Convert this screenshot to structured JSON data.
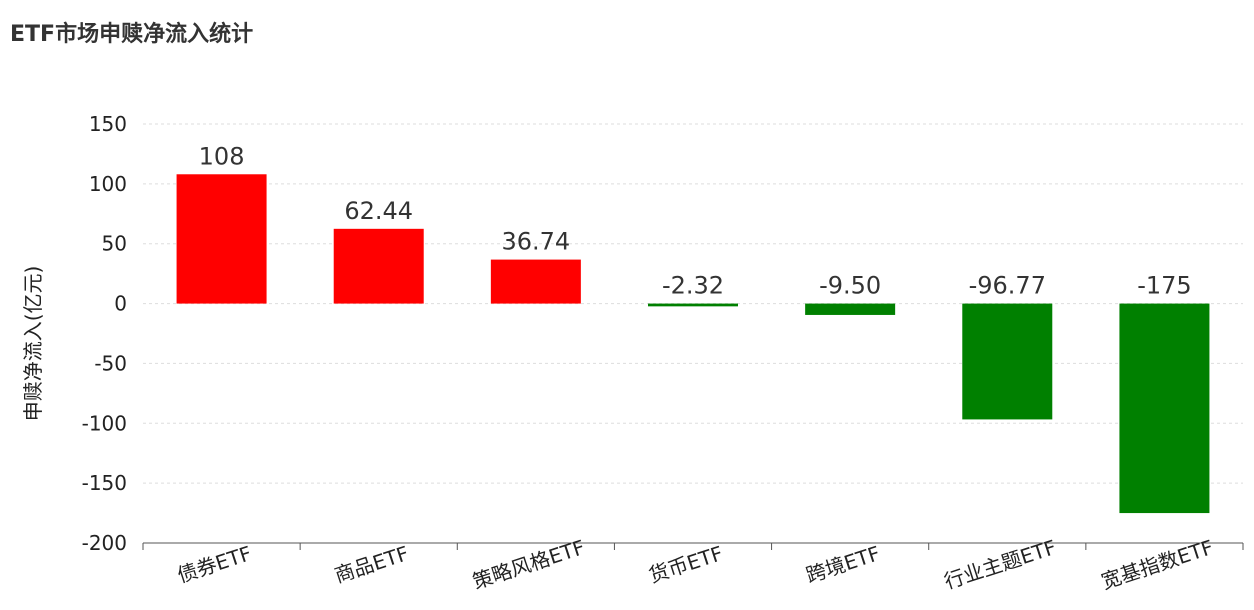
{
  "title": "ETF市场申赎净流入统计",
  "chart_data": {
    "type": "bar",
    "title": "ETF市场申赎净流入统计",
    "ylabel": "申赎净流入(亿元)",
    "xlabel": "",
    "categories": [
      "债券ETF",
      "商品ETF",
      "策略风格ETF",
      "货币ETF",
      "跨境ETF",
      "行业主题ETF",
      "宽基指数ETF"
    ],
    "values": [
      108,
      62.44,
      36.74,
      -2.32,
      -9.5,
      -96.77,
      -175
    ],
    "data_labels": [
      "108",
      "62.44",
      "36.74",
      "-2.32",
      "-9.50",
      "-96.77",
      "-175"
    ],
    "ylim": [
      -200,
      150
    ],
    "yticks": [
      150,
      100,
      50,
      0,
      -50,
      -100,
      -150,
      -200
    ],
    "grid": true,
    "colors": {
      "positive": "#ff0000",
      "negative": "#008000"
    }
  }
}
